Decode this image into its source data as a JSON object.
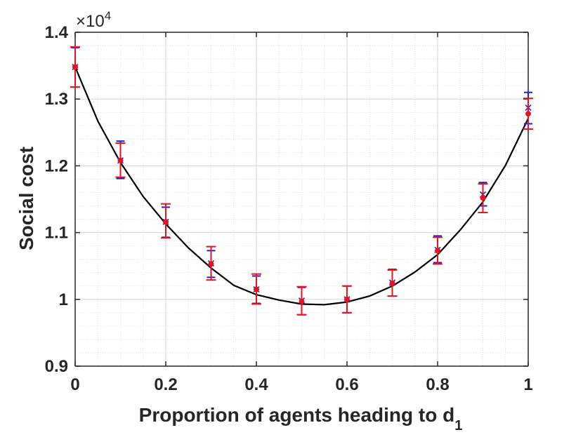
{
  "chart_data": {
    "type": "line",
    "xlabel": "Proportion of agents heading to d",
    "xlabel_sub": "1",
    "ylabel": "Social cost",
    "y_multiplier_base": "×10",
    "y_multiplier_exp": "4",
    "xlim": [
      0,
      1
    ],
    "ylim": [
      0.9,
      1.4
    ],
    "x_ticks": [
      0,
      0.2,
      0.4,
      0.6,
      0.8,
      1
    ],
    "x_tick_labels": [
      "0",
      "0.2",
      "0.4",
      "0.6",
      "0.8",
      "1"
    ],
    "y_ticks": [
      0.9,
      1.0,
      1.1,
      1.2,
      1.3,
      1.4
    ],
    "y_tick_labels": [
      "0.9",
      "1",
      "1.1",
      "1.2",
      "1.3",
      "1.4"
    ],
    "grid": true,
    "minor_grid": true,
    "colors": {
      "curve": "#000000",
      "blue_series": "#1f1fd0",
      "red_series": "#e8141c",
      "axis": "#262626"
    },
    "curve": {
      "x": [
        0,
        0.05,
        0.1,
        0.15,
        0.2,
        0.25,
        0.3,
        0.35,
        0.4,
        0.45,
        0.5,
        0.55,
        0.6,
        0.65,
        0.7,
        0.75,
        0.8,
        0.85,
        0.9,
        0.95,
        1
      ],
      "y": [
        1.348,
        1.267,
        1.205,
        1.154,
        1.113,
        1.077,
        1.047,
        1.021,
        1.007,
        0.999,
        0.993,
        0.992,
        0.996,
        1.005,
        1.02,
        1.041,
        1.067,
        1.104,
        1.146,
        1.201,
        1.271
      ]
    },
    "series": [
      {
        "x": [
          0,
          0.1,
          0.2,
          0.3,
          0.4,
          0.5,
          0.6,
          0.7,
          0.8,
          0.9,
          1
        ],
        "y": [
          1.348,
          1.208,
          1.116,
          1.054,
          1.015,
          0.998,
          1.0,
          1.025,
          1.074,
          1.157,
          1.287
        ],
        "err_low": [
          1.318,
          1.181,
          1.093,
          1.033,
          0.994,
          0.977,
          0.98,
          1.005,
          1.055,
          1.14,
          1.263
        ],
        "err_high": [
          1.377,
          1.237,
          1.138,
          1.073,
          1.035,
          1.018,
          1.02,
          1.045,
          1.095,
          1.175,
          1.31
        ]
      },
      {
        "x": [
          0,
          0.1,
          0.2,
          0.3,
          0.4,
          0.5,
          0.6,
          0.7,
          0.8,
          0.9,
          1
        ],
        "y": [
          1.348,
          1.208,
          1.116,
          1.053,
          1.015,
          0.997,
          1.0,
          1.024,
          1.073,
          1.152,
          1.278
        ],
        "err_low": [
          1.318,
          1.183,
          1.092,
          1.029,
          0.993,
          0.977,
          0.98,
          1.005,
          1.053,
          1.13,
          1.255
        ],
        "err_high": [
          1.378,
          1.234,
          1.143,
          1.079,
          1.038,
          1.019,
          1.02,
          1.044,
          1.093,
          1.173,
          1.301
        ]
      }
    ]
  }
}
